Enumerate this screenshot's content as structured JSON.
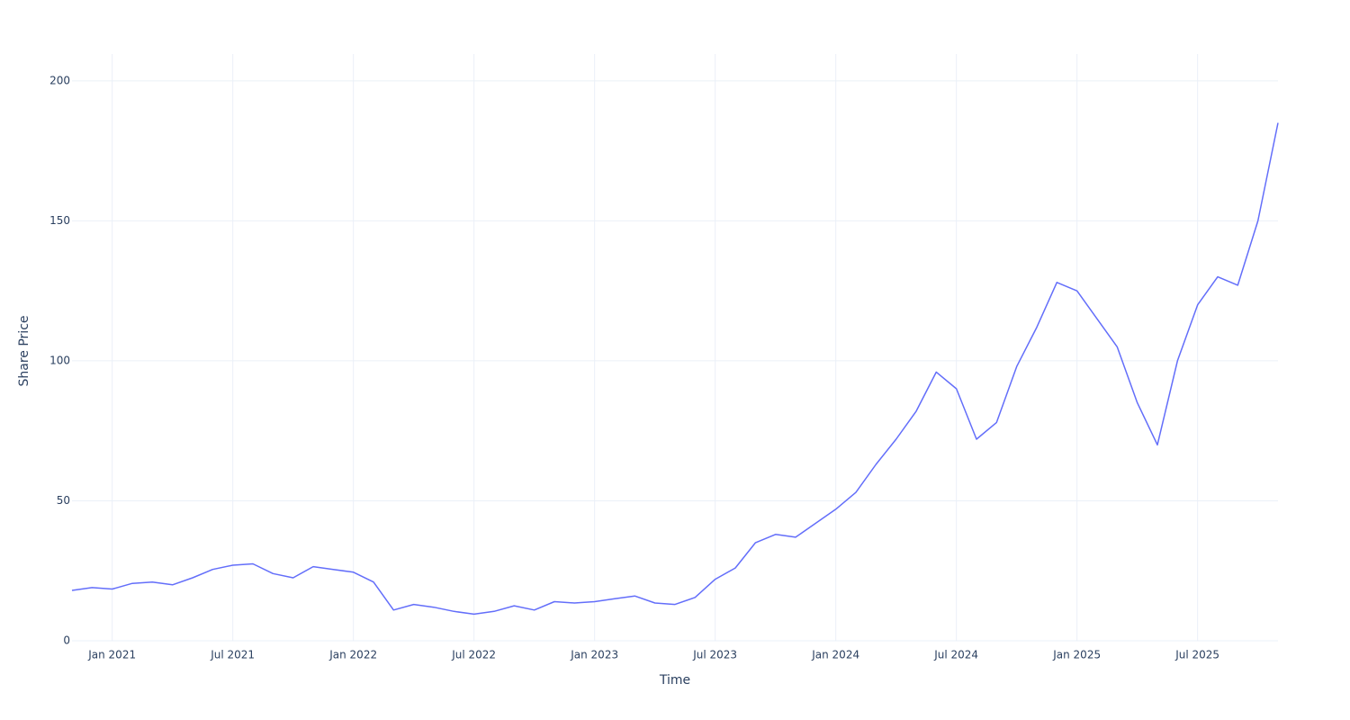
{
  "chart_data": {
    "type": "line",
    "x_label": "Time",
    "y_label": "Share Price",
    "x": [
      "2020-11",
      "2020-12",
      "2021-01",
      "2021-02",
      "2021-03",
      "2021-04",
      "2021-05",
      "2021-06",
      "2021-07",
      "2021-08",
      "2021-09",
      "2021-10",
      "2021-11",
      "2021-12",
      "2022-01",
      "2022-02",
      "2022-03",
      "2022-04",
      "2022-05",
      "2022-06",
      "2022-07",
      "2022-08",
      "2022-09",
      "2022-10",
      "2022-11",
      "2022-12",
      "2023-01",
      "2023-02",
      "2023-03",
      "2023-04",
      "2023-05",
      "2023-06",
      "2023-07",
      "2023-08",
      "2023-09",
      "2023-10",
      "2023-11",
      "2023-12",
      "2024-01",
      "2024-02",
      "2024-03",
      "2024-04",
      "2024-05",
      "2024-06",
      "2024-07",
      "2024-08",
      "2024-09",
      "2024-10",
      "2024-11",
      "2024-12",
      "2025-01",
      "2025-02",
      "2025-03",
      "2025-04",
      "2025-05",
      "2025-06",
      "2025-07",
      "2025-08",
      "2025-09",
      "2025-10",
      "2025-11"
    ],
    "values": [
      18,
      19,
      18.5,
      20.5,
      21,
      20,
      22.5,
      25.5,
      27,
      27.5,
      24,
      22.5,
      26.5,
      25.5,
      24.5,
      21,
      11,
      13,
      12,
      10.5,
      9.5,
      10.5,
      12.5,
      11,
      14,
      13.5,
      14,
      15,
      16,
      13.5,
      13,
      15.5,
      22,
      26,
      35,
      38,
      37,
      42,
      47,
      53,
      63,
      72,
      82,
      96,
      90,
      72,
      78,
      98,
      112,
      128,
      125,
      115,
      105,
      85,
      70,
      100,
      120,
      130,
      127,
      150,
      185
    ],
    "color": "#636efa",
    "xlim": [
      "2020-11",
      "2025-11"
    ],
    "xticks": [
      {
        "value": "2021-01",
        "label": "Jan 2021"
      },
      {
        "value": "2021-07",
        "label": "Jul 2021"
      },
      {
        "value": "2022-01",
        "label": "Jan 2022"
      },
      {
        "value": "2022-07",
        "label": "Jul 2022"
      },
      {
        "value": "2023-01",
        "label": "Jan 2023"
      },
      {
        "value": "2023-07",
        "label": "Jul 2023"
      },
      {
        "value": "2024-01",
        "label": "Jan 2024"
      },
      {
        "value": "2024-07",
        "label": "Jul 2024"
      },
      {
        "value": "2025-01",
        "label": "Jan 2025"
      },
      {
        "value": "2025-07",
        "label": "Jul 2025"
      }
    ],
    "ylim": [
      0,
      209.6
    ],
    "yticks": [
      0,
      50,
      100,
      150,
      200
    ],
    "grid": true
  }
}
